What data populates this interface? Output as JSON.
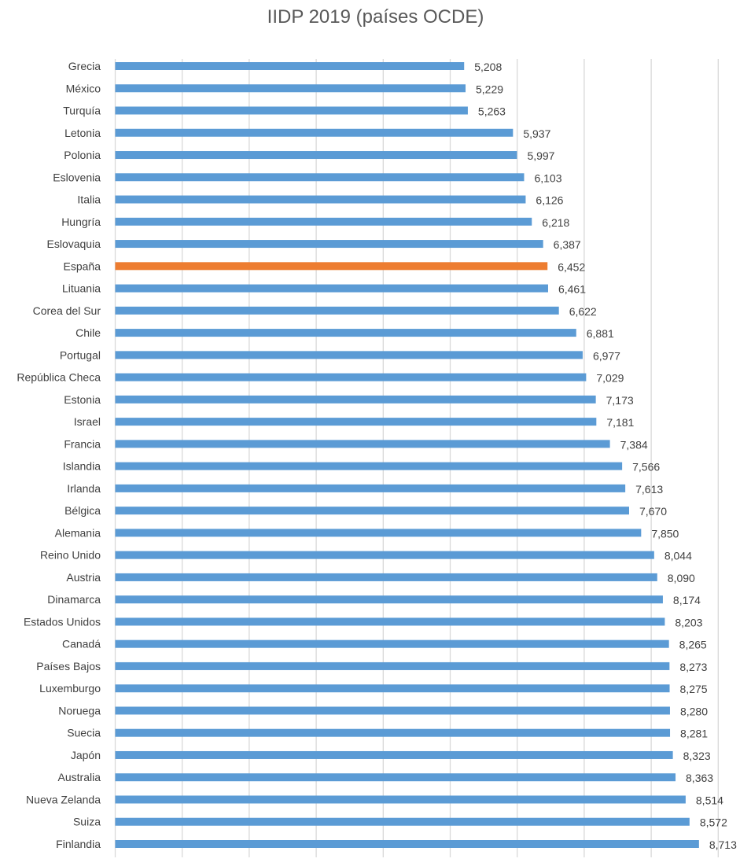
{
  "chart_data": {
    "type": "bar",
    "orientation": "horizontal",
    "title": "IIDP 2019 (países OCDE)",
    "xlabel": "",
    "ylabel": "",
    "xlim": [
      0,
      9
    ],
    "grid": "vertical",
    "legend": "none",
    "categories": [
      "Grecia",
      "México",
      "Turquía",
      "Letonia",
      "Polonia",
      "Eslovenia",
      "Italia",
      "Hungría",
      "Eslovaquia",
      "España",
      "Lituania",
      "Corea del Sur",
      "Chile",
      "Portugal",
      "República Checa",
      "Estonia",
      "Israel",
      "Francia",
      "Islandia",
      "Irlanda",
      "Bélgica",
      "Alemania",
      "Reino Unido",
      "Austria",
      "Dinamarca",
      "Estados Unidos",
      "Canadá",
      "Países Bajos",
      "Luxemburgo",
      "Noruega",
      "Suecia",
      "Japón",
      "Australia",
      "Nueva Zelanda",
      "Suiza",
      "Finlandia"
    ],
    "values": [
      5.208,
      5.229,
      5.263,
      5.937,
      5.997,
      6.103,
      6.126,
      6.218,
      6.387,
      6.452,
      6.461,
      6.622,
      6.881,
      6.977,
      7.029,
      7.173,
      7.181,
      7.384,
      7.566,
      7.613,
      7.67,
      7.85,
      8.044,
      8.09,
      8.174,
      8.203,
      8.265,
      8.273,
      8.275,
      8.28,
      8.281,
      8.323,
      8.363,
      8.514,
      8.572,
      8.713
    ],
    "data_labels": [
      "5,208",
      "5,229",
      "5,263",
      "5,937",
      "5,997",
      "6,103",
      "6,126",
      "6,218",
      "6,387",
      "6,452",
      "6,461",
      "6,622",
      "6,881",
      "6,977",
      "7,029",
      "7,173",
      "7,181",
      "7,384",
      "7,566",
      "7,613",
      "7,670",
      "7,850",
      "8,044",
      "8,090",
      "8,174",
      "8,203",
      "8,265",
      "8,273",
      "8,275",
      "8,280",
      "8,281",
      "8,323",
      "8,363",
      "8,514",
      "8,572",
      "8,713"
    ],
    "highlight": "España",
    "colors": {
      "bar": "#5B9BD5",
      "highlight": "#ED7D31",
      "grid": "#D9D9D9",
      "text": "#404040"
    }
  }
}
